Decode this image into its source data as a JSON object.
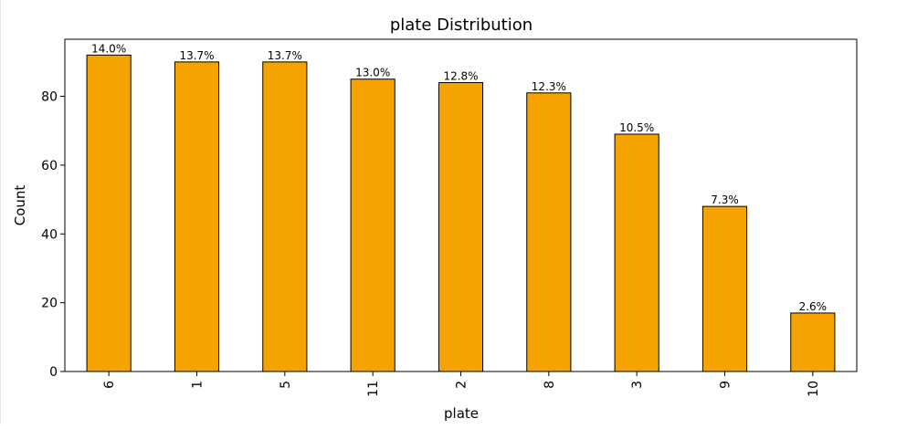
{
  "chart_data": {
    "type": "bar",
    "title": "plate Distribution",
    "xlabel": "plate",
    "ylabel": "Count",
    "categories": [
      "6",
      "1",
      "5",
      "11",
      "2",
      "8",
      "3",
      "9",
      "10"
    ],
    "values": [
      92,
      90,
      90,
      85,
      84,
      81,
      69,
      48,
      17
    ],
    "percent_labels": [
      "14.0%",
      "13.7%",
      "13.7%",
      "13.0%",
      "12.8%",
      "12.3%",
      "10.5%",
      "7.3%",
      "2.6%"
    ],
    "ylim": [
      0,
      96.6
    ],
    "yticks": [
      0,
      20,
      40,
      60,
      80
    ],
    "bar_color": "#f5a300",
    "edge_color": "#000000",
    "grid": false,
    "xtick_rotation": 90
  }
}
